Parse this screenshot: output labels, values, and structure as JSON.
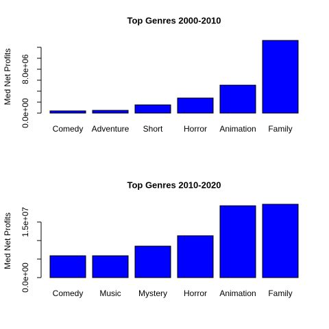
{
  "chart_data": [
    {
      "type": "bar",
      "title": "Top Genres 2000-2010",
      "y_label": "Med Net Profits",
      "categories": [
        "Comedy",
        "Adventure",
        "Short",
        "Horror",
        "Animation",
        "Family"
      ],
      "values": [
        400000,
        500000,
        1500000,
        2750000,
        5100000,
        13250000
      ],
      "color": "#0000ff",
      "ylim": [
        0,
        13250000
      ],
      "yticks": [
        {
          "value": 0,
          "label": "0.0e+00"
        },
        {
          "value": 8000000,
          "label": "8.0e+06"
        }
      ],
      "yticks_unlabeled": [
        2000000,
        4000000,
        6000000,
        10000000,
        12000000
      ]
    },
    {
      "type": "bar",
      "title": "Top Genres 2010-2020",
      "y_label": "Med Net Profits",
      "categories": [
        "Comedy",
        "Music",
        "Mystery",
        "Horror",
        "Animation",
        "Family"
      ],
      "values": [
        5900000,
        5900000,
        8500000,
        11300000,
        19400000,
        19800000
      ],
      "color": "#0000ff",
      "ylim": [
        0,
        19800000
      ],
      "yticks": [
        {
          "value": 0,
          "label": "0.0e+00"
        },
        {
          "value": 15000000,
          "label": "1.5e+07"
        }
      ],
      "yticks_unlabeled": [
        5000000,
        10000000
      ]
    }
  ]
}
